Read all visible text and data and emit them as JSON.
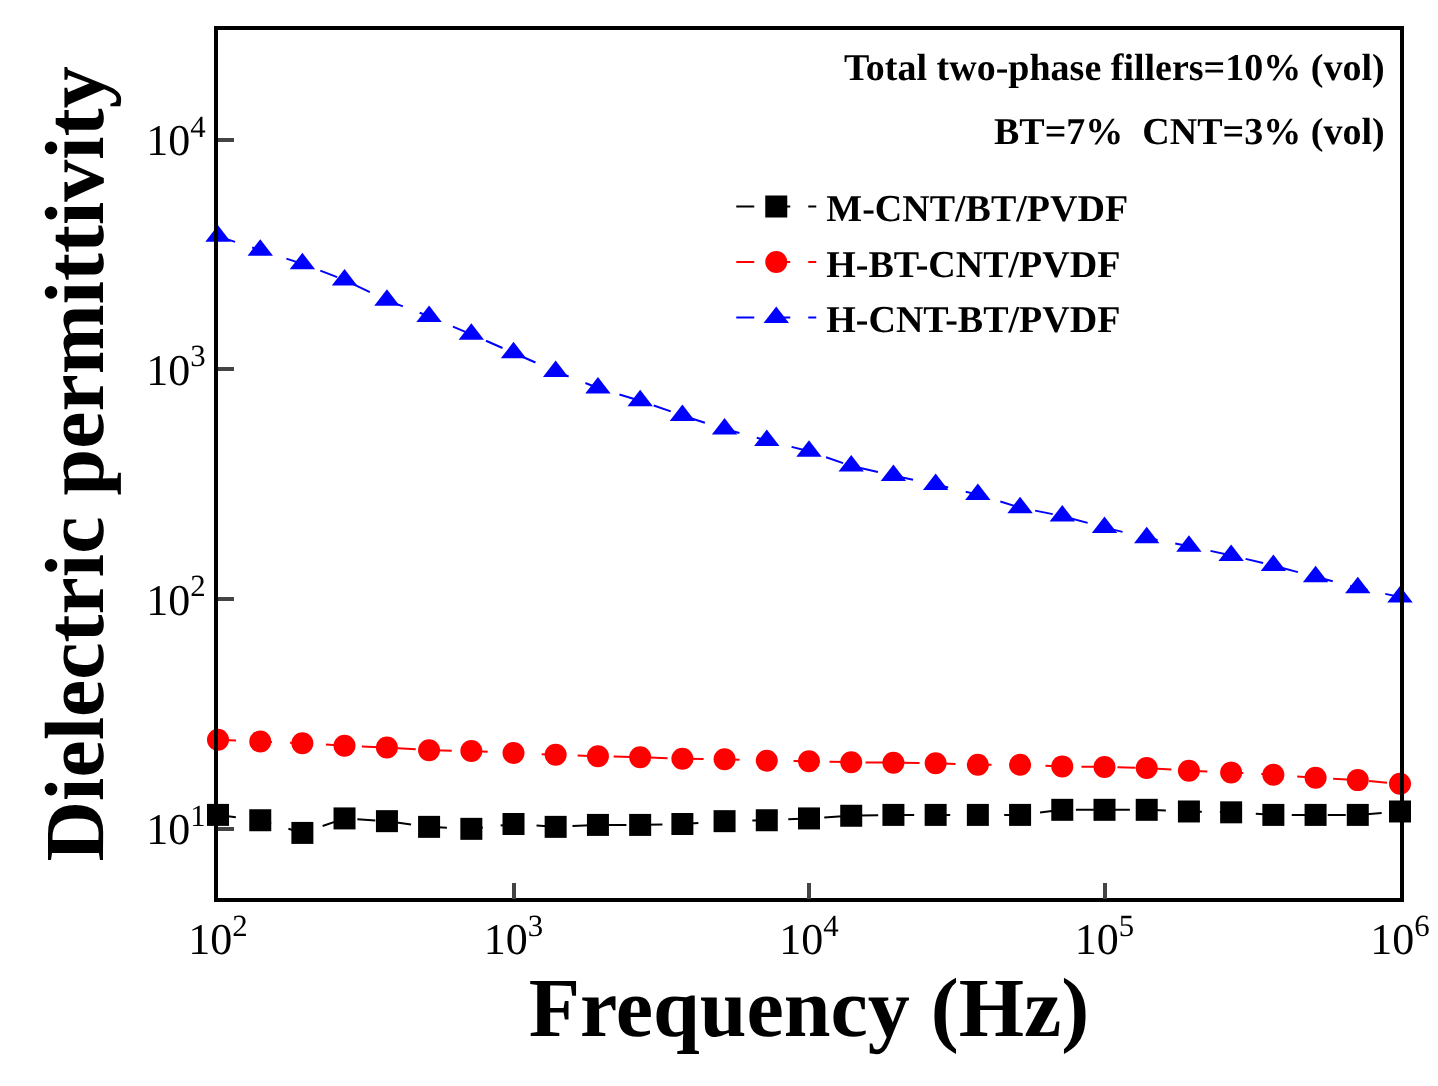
{
  "chart_data": {
    "type": "line",
    "xlabel": "Frequency (Hz)",
    "ylabel": "Dielectric permittivity",
    "log": "xy",
    "grid": false,
    "legend": "top right",
    "line_style": "dashed",
    "annotations": [
      "Total two-phase fillers=10% (vol)",
      "BT=7%  CNT=3% (vol)"
    ],
    "x": [
      100,
      139,
      193,
      268,
      373,
      518,
      720,
      1000,
      1389,
      1931,
      2683,
      3728,
      5179,
      7197,
      10000,
      13895,
      19307,
      26827,
      37276,
      51795,
      71969,
      100000,
      138950,
      193070,
      268270,
      372760,
      517950,
      719690,
      1000000
    ],
    "xlim": [
      100,
      1000000
    ],
    "xticks": [
      {
        "value": 100,
        "label": "10$^{2}$"
      },
      {
        "value": 1000,
        "label": "10$^{3}$"
      },
      {
        "value": 10000,
        "label": "10$^{4}$"
      },
      {
        "value": 100000,
        "label": "10$^{5}$"
      },
      {
        "value": 1000000,
        "label": "10$^{6}$"
      }
    ],
    "ylim": [
      5,
      30000
    ],
    "yticks": [
      {
        "value": 10,
        "label": "10$^{1}$"
      },
      {
        "value": 100,
        "label": "10$^{2}$"
      },
      {
        "value": 1000,
        "label": "10$^{3}$"
      },
      {
        "value": 10000,
        "label": "10$^{4}$"
      }
    ],
    "series": [
      {
        "name": "M-CNT/BT/PVDF",
        "color": "#000000",
        "marker": "square",
        "values": [
          11.5,
          10.9,
          9.6,
          11.1,
          10.8,
          10.2,
          10.0,
          10.5,
          10.2,
          10.4,
          10.4,
          10.5,
          10.8,
          10.9,
          11.1,
          11.4,
          11.5,
          11.5,
          11.5,
          11.5,
          12.1,
          12.1,
          12.1,
          11.9,
          11.8,
          11.5,
          11.5,
          11.5,
          11.9
        ]
      },
      {
        "name": "H-BT-CNT/PVDF",
        "color": "#ff0000",
        "marker": "circle",
        "values": [
          24.4,
          24.0,
          23.6,
          23.0,
          22.6,
          22.0,
          21.8,
          21.4,
          21.0,
          20.7,
          20.5,
          20.2,
          20.1,
          19.8,
          19.7,
          19.5,
          19.4,
          19.3,
          19.0,
          19.0,
          18.7,
          18.6,
          18.4,
          17.9,
          17.6,
          17.2,
          16.7,
          16.3,
          15.7
        ]
      },
      {
        "name": "H-CNT-BT/PVDF",
        "color": "#0000ff",
        "marker": "triangle",
        "values": [
          3800,
          3300,
          2880,
          2450,
          2000,
          1700,
          1420,
          1180,
          980,
          830,
          730,
          630,
          550,
          490,
          440,
          380,
          345,
          315,
          285,
          250,
          230,
          205,
          185,
          170,
          155,
          140,
          125,
          112,
          102
        ]
      }
    ]
  }
}
